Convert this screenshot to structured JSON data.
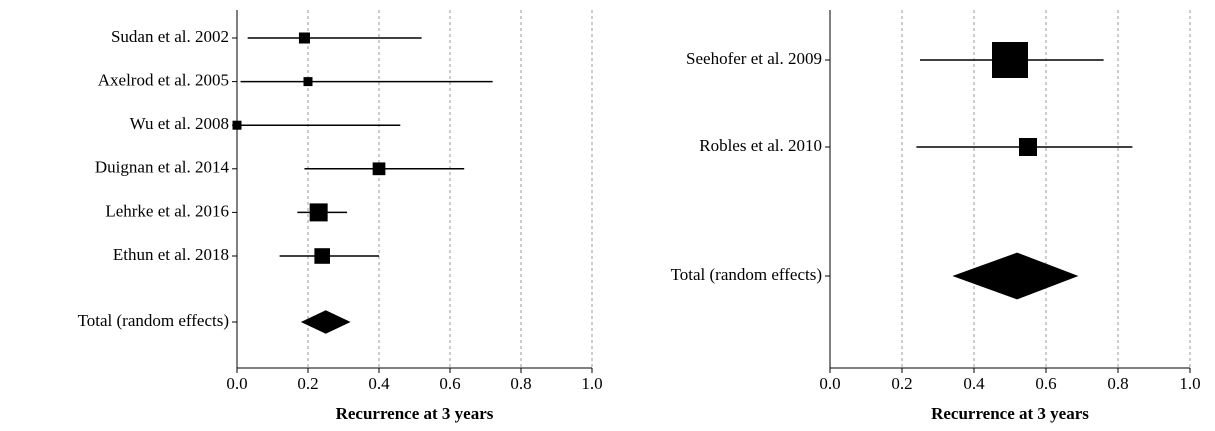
{
  "chart_data": [
    {
      "type": "forest",
      "xlabel": "Recurrence at 3 years",
      "xlim": [
        0,
        1
      ],
      "xticks": [
        {
          "value": 0,
          "label": "0.0"
        },
        {
          "value": 0.2,
          "label": "0.2"
        },
        {
          "value": 0.4,
          "label": "0.4"
        },
        {
          "value": 0.6,
          "label": "0.6"
        },
        {
          "value": 0.8,
          "label": "0.8"
        },
        {
          "value": 1,
          "label": "1.0"
        }
      ],
      "grid": true,
      "color": "#000000",
      "studies": [
        {
          "label": "Sudan et al. 2002",
          "value": 0.19,
          "lower": 0.03,
          "upper": 0.52,
          "weight": 12
        },
        {
          "label": "Axelrod et al. 2005",
          "value": 0.2,
          "lower": 0.01,
          "upper": 0.72,
          "weight": 8
        },
        {
          "label": "Wu et al. 2008",
          "value": 0.0,
          "lower": 0.0,
          "upper": 0.46,
          "weight": 8
        },
        {
          "label": "Duignan et al. 2014",
          "value": 0.4,
          "lower": 0.19,
          "upper": 0.64,
          "weight": 16
        },
        {
          "label": "Lehrke et al. 2016",
          "value": 0.23,
          "lower": 0.17,
          "upper": 0.31,
          "weight": 32
        },
        {
          "label": "Ethun et al. 2018",
          "value": 0.24,
          "lower": 0.12,
          "upper": 0.4,
          "weight": 24
        }
      ],
      "total": {
        "label": "Total (random effects)",
        "value": 0.25,
        "lower": 0.18,
        "upper": 0.32
      }
    },
    {
      "type": "forest",
      "xlabel": "Recurrence at 3 years",
      "xlim": [
        0,
        1
      ],
      "xticks": [
        {
          "value": 0,
          "label": "0.0"
        },
        {
          "value": 0.2,
          "label": "0.2"
        },
        {
          "value": 0.4,
          "label": "0.4"
        },
        {
          "value": 0.6,
          "label": "0.6"
        },
        {
          "value": 0.8,
          "label": "0.8"
        },
        {
          "value": 1,
          "label": "1.0"
        }
      ],
      "grid": true,
      "color": "#000000",
      "studies": [
        {
          "label": "Seehofer et al. 2009",
          "value": 0.5,
          "lower": 0.25,
          "upper": 0.76,
          "weight": 80
        },
        {
          "label": "Robles et al. 2010",
          "value": 0.55,
          "lower": 0.24,
          "upper": 0.84,
          "weight": 20
        }
      ],
      "total": {
        "label": "Total (random effects)",
        "value": 0.52,
        "lower": 0.34,
        "upper": 0.69
      }
    }
  ]
}
